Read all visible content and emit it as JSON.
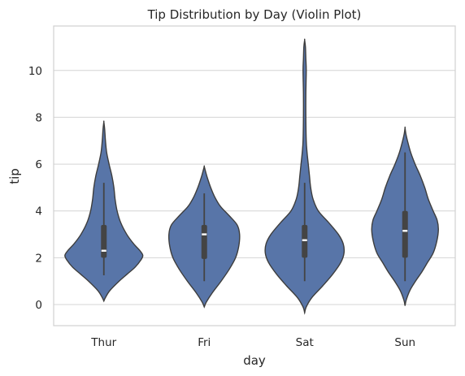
{
  "chart_data": {
    "type": "violin",
    "title": "Tip Distribution by Day (Violin Plot)",
    "xlabel": "day",
    "ylabel": "tip",
    "ylim": [
      -0.9,
      11.9
    ],
    "yticks": [
      0,
      2,
      4,
      6,
      8,
      10
    ],
    "grid": "horizontal",
    "color": "#5875a8",
    "categories": [
      "Thur",
      "Fri",
      "Sat",
      "Sun"
    ],
    "violins": [
      {
        "category": "Thur",
        "range": [
          0.15,
          7.8
        ],
        "whisker": [
          1.25,
          5.2
        ],
        "q1": 2.0,
        "median": 2.3,
        "q3": 3.4,
        "density": [
          [
            0.15,
            0.0
          ],
          [
            0.3,
            0.04
          ],
          [
            0.6,
            0.15
          ],
          [
            1.0,
            0.38
          ],
          [
            1.3,
            0.58
          ],
          [
            1.6,
            0.78
          ],
          [
            1.9,
            0.92
          ],
          [
            2.1,
            0.97
          ],
          [
            2.3,
            0.9
          ],
          [
            2.6,
            0.74
          ],
          [
            3.0,
            0.57
          ],
          [
            3.5,
            0.42
          ],
          [
            4.0,
            0.33
          ],
          [
            4.5,
            0.28
          ],
          [
            5.0,
            0.25
          ],
          [
            5.5,
            0.2
          ],
          [
            6.0,
            0.13
          ],
          [
            6.5,
            0.07
          ],
          [
            7.0,
            0.04
          ],
          [
            7.5,
            0.02
          ],
          [
            7.8,
            0.0
          ]
        ]
      },
      {
        "category": "Fri",
        "range": [
          -0.1,
          5.9
        ],
        "whisker": [
          1.0,
          4.75
        ],
        "q1": 1.95,
        "median": 3.0,
        "q3": 3.4,
        "density": [
          [
            -0.1,
            0.0
          ],
          [
            0.1,
            0.05
          ],
          [
            0.5,
            0.2
          ],
          [
            1.0,
            0.42
          ],
          [
            1.5,
            0.62
          ],
          [
            2.0,
            0.78
          ],
          [
            2.5,
            0.86
          ],
          [
            3.0,
            0.88
          ],
          [
            3.4,
            0.82
          ],
          [
            3.8,
            0.62
          ],
          [
            4.2,
            0.4
          ],
          [
            4.6,
            0.26
          ],
          [
            5.0,
            0.16
          ],
          [
            5.4,
            0.08
          ],
          [
            5.7,
            0.03
          ],
          [
            5.9,
            0.0
          ]
        ]
      },
      {
        "category": "Sat",
        "range": [
          -0.35,
          11.3
        ],
        "whisker": [
          1.0,
          5.2
        ],
        "q1": 2.0,
        "median": 2.75,
        "q3": 3.4,
        "density": [
          [
            -0.35,
            0.0
          ],
          [
            -0.1,
            0.04
          ],
          [
            0.3,
            0.18
          ],
          [
            0.8,
            0.45
          ],
          [
            1.3,
            0.7
          ],
          [
            1.8,
            0.9
          ],
          [
            2.2,
            0.98
          ],
          [
            2.6,
            0.96
          ],
          [
            3.0,
            0.84
          ],
          [
            3.5,
            0.6
          ],
          [
            4.0,
            0.34
          ],
          [
            4.5,
            0.21
          ],
          [
            5.0,
            0.15
          ],
          [
            5.5,
            0.12
          ],
          [
            6.0,
            0.09
          ],
          [
            6.5,
            0.06
          ],
          [
            7.0,
            0.04
          ],
          [
            8.0,
            0.03
          ],
          [
            9.0,
            0.03
          ],
          [
            10.0,
            0.04
          ],
          [
            10.5,
            0.03
          ],
          [
            11.0,
            0.02
          ],
          [
            11.3,
            0.0
          ]
        ]
      },
      {
        "category": "Sun",
        "range": [
          -0.05,
          7.55
        ],
        "whisker": [
          1.0,
          6.5
        ],
        "q1": 2.0,
        "median": 3.15,
        "q3": 4.0,
        "density": [
          [
            -0.05,
            0.0
          ],
          [
            0.2,
            0.03
          ],
          [
            0.6,
            0.12
          ],
          [
            1.0,
            0.26
          ],
          [
            1.4,
            0.42
          ],
          [
            1.8,
            0.56
          ],
          [
            2.2,
            0.7
          ],
          [
            2.7,
            0.79
          ],
          [
            3.2,
            0.83
          ],
          [
            3.6,
            0.8
          ],
          [
            4.0,
            0.7
          ],
          [
            4.5,
            0.58
          ],
          [
            5.0,
            0.49
          ],
          [
            5.5,
            0.38
          ],
          [
            6.0,
            0.25
          ],
          [
            6.5,
            0.14
          ],
          [
            7.0,
            0.06
          ],
          [
            7.3,
            0.02
          ],
          [
            7.55,
            0.0
          ]
        ]
      }
    ]
  }
}
